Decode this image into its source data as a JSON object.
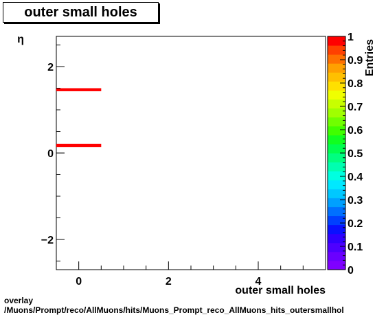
{
  "chart_data": {
    "type": "heatmap",
    "title": "outer small holes",
    "xlabel": "outer small holes",
    "ylabel": "η",
    "zlabel": "Entries",
    "xlim": [
      -0.5,
      5.5
    ],
    "ylim": [
      -2.7,
      2.7
    ],
    "zlim": [
      0,
      1
    ],
    "x_ticks": [
      0,
      2,
      4
    ],
    "y_ticks": [
      -2,
      0,
      2
    ],
    "z_ticks": [
      0,
      0.1,
      0.2,
      0.3,
      0.4,
      0.5,
      0.6,
      0.7,
      0.8,
      0.9,
      1
    ],
    "grid": false,
    "cells": [
      {
        "x0": -0.5,
        "x1": 0.5,
        "y0": 1.43,
        "y1": 1.5,
        "value": 1
      },
      {
        "x0": -0.5,
        "x1": 0.5,
        "y0": 0.14,
        "y1": 0.21,
        "value": 1
      }
    ],
    "palette": [
      "#7f00ff",
      "#6a00ff",
      "#4d00ff",
      "#3000ff",
      "#0a10ff",
      "#0040ff",
      "#0070ff",
      "#00a0ff",
      "#00c8ff",
      "#00e8ff",
      "#00ffe0",
      "#00ffb0",
      "#00ff80",
      "#00ff50",
      "#10ff20",
      "#40ff00",
      "#70ff00",
      "#a0ff00",
      "#c8ff00",
      "#f0ff00",
      "#ffe000",
      "#ffc000",
      "#ffa000",
      "#ff7000",
      "#ff4000",
      "#ff0000"
    ]
  },
  "footer": {
    "line1": "overlay",
    "line2": "/Muons/Prompt/reco/AllMuons/hits/Muons_Prompt_reco_AllMuons_hits_outersmallhol"
  }
}
